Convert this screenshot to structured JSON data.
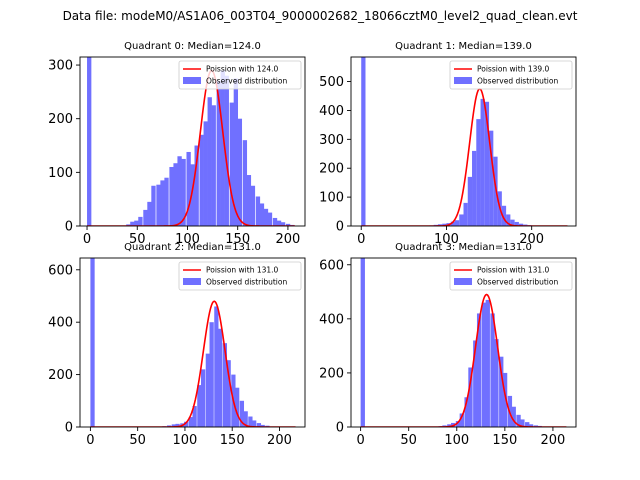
{
  "suptitle": "Data file: modeM0/AS1A06_003T04_9000002682_18066cztM0_level2_quad_clean.evt",
  "colors": {
    "hist": "#7070ff",
    "fit": "#ff0000",
    "axis": "#000000"
  },
  "chart_data": [
    {
      "type": "bar",
      "title": "Quadrant 0: Median=124.0",
      "median": 124.0,
      "xlim": [
        -7,
        217
      ],
      "ylim": [
        0,
        315
      ],
      "xticks": [
        0,
        50,
        100,
        150,
        200
      ],
      "yticks": [
        0,
        100,
        200,
        300
      ],
      "bin_width": 4.3,
      "bins": [
        [
          0,
          1500
        ],
        [
          39,
          3
        ],
        [
          43,
          8
        ],
        [
          47,
          10
        ],
        [
          51,
          17
        ],
        [
          56,
          30
        ],
        [
          60,
          45
        ],
        [
          64,
          75
        ],
        [
          69,
          77
        ],
        [
          73,
          85
        ],
        [
          77,
          90
        ],
        [
          82,
          110
        ],
        [
          86,
          117
        ],
        [
          90,
          130
        ],
        [
          94,
          125
        ],
        [
          99,
          138
        ],
        [
          103,
          115
        ],
        [
          107,
          150
        ],
        [
          112,
          170
        ],
        [
          116,
          195
        ],
        [
          120,
          240
        ],
        [
          124,
          225
        ],
        [
          129,
          270
        ],
        [
          133,
          290
        ],
        [
          137,
          280
        ],
        [
          142,
          230
        ],
        [
          146,
          275
        ],
        [
          150,
          200
        ],
        [
          155,
          160
        ],
        [
          159,
          95
        ],
        [
          163,
          75
        ],
        [
          168,
          55
        ],
        [
          172,
          42
        ],
        [
          176,
          32
        ],
        [
          180,
          25
        ],
        [
          185,
          15
        ],
        [
          189,
          10
        ],
        [
          193,
          7
        ],
        [
          198,
          4
        ],
        [
          202,
          2
        ]
      ],
      "fit": {
        "label": "Poission with 124.0",
        "mu": 124.0,
        "peak": 290
      },
      "legend": [
        "Poission with 124.0",
        "Observed distribution"
      ]
    },
    {
      "type": "bar",
      "title": "Quadrant 1: Median=139.0",
      "median": 139.0,
      "xlim": [
        -12,
        252
      ],
      "ylim": [
        0,
        585
      ],
      "xticks": [
        0,
        100,
        200
      ],
      "yticks": [
        0,
        100,
        200,
        300,
        400,
        500
      ],
      "bin_width": 5.0,
      "bins": [
        [
          0,
          1500
        ],
        [
          80,
          2
        ],
        [
          85,
          4
        ],
        [
          90,
          6
        ],
        [
          95,
          8
        ],
        [
          100,
          10
        ],
        [
          105,
          15
        ],
        [
          110,
          20
        ],
        [
          115,
          40
        ],
        [
          120,
          80
        ],
        [
          125,
          170
        ],
        [
          130,
          260
        ],
        [
          135,
          370
        ],
        [
          140,
          440
        ],
        [
          145,
          430
        ],
        [
          150,
          330
        ],
        [
          155,
          240
        ],
        [
          160,
          120
        ],
        [
          165,
          70
        ],
        [
          170,
          40
        ],
        [
          175,
          22
        ],
        [
          180,
          14
        ],
        [
          185,
          8
        ],
        [
          190,
          5
        ],
        [
          195,
          3
        ]
      ],
      "fit": {
        "label": "Poission with 139.0",
        "mu": 139.0,
        "peak": 475
      },
      "legend": [
        "Poission with 139.0",
        "Observed distribution"
      ]
    },
    {
      "type": "bar",
      "title": "Quadrant 2: Median=131.0",
      "median": 131.0,
      "xlim": [
        -11,
        227
      ],
      "ylim": [
        0,
        645
      ],
      "xticks": [
        0,
        50,
        100,
        150,
        200
      ],
      "yticks": [
        0,
        200,
        400,
        600
      ],
      "bin_width": 4.5,
      "bins": [
        [
          0,
          1500
        ],
        [
          76,
          3
        ],
        [
          81,
          6
        ],
        [
          86,
          10
        ],
        [
          90,
          12
        ],
        [
          95,
          14
        ],
        [
          99,
          20
        ],
        [
          104,
          38
        ],
        [
          108,
          80
        ],
        [
          113,
          160
        ],
        [
          117,
          220
        ],
        [
          122,
          280
        ],
        [
          126,
          400
        ],
        [
          131,
          460
        ],
        [
          135,
          375
        ],
        [
          140,
          320
        ],
        [
          144,
          255
        ],
        [
          149,
          200
        ],
        [
          153,
          150
        ],
        [
          158,
          100
        ],
        [
          162,
          60
        ],
        [
          167,
          40
        ],
        [
          171,
          25
        ],
        [
          176,
          15
        ],
        [
          180,
          8
        ],
        [
          185,
          5
        ]
      ],
      "fit": {
        "label": "Poission with 131.0",
        "mu": 131.0,
        "peak": 480
      },
      "legend": [
        "Poission with 131.0",
        "Observed distribution"
      ]
    },
    {
      "type": "bar",
      "title": "Quadrant 3: Median=131.0",
      "median": 131.0,
      "xlim": [
        -10,
        224
      ],
      "ylim": [
        0,
        625
      ],
      "xticks": [
        0,
        50,
        100,
        150,
        200
      ],
      "yticks": [
        0,
        200,
        400,
        600
      ],
      "bin_width": 4.5,
      "bins": [
        [
          0,
          1500
        ],
        [
          81,
          3
        ],
        [
          85,
          6
        ],
        [
          90,
          10
        ],
        [
          94,
          15
        ],
        [
          99,
          22
        ],
        [
          103,
          50
        ],
        [
          108,
          110
        ],
        [
          112,
          220
        ],
        [
          117,
          320
        ],
        [
          121,
          420
        ],
        [
          126,
          460
        ],
        [
          130,
          470
        ],
        [
          135,
          420
        ],
        [
          139,
          325
        ],
        [
          144,
          260
        ],
        [
          148,
          200
        ],
        [
          153,
          115
        ],
        [
          157,
          75
        ],
        [
          162,
          45
        ],
        [
          166,
          28
        ],
        [
          171,
          18
        ],
        [
          175,
          10
        ],
        [
          180,
          6
        ],
        [
          184,
          4
        ]
      ],
      "fit": {
        "label": "Poission with 131.0",
        "mu": 131.0,
        "peak": 490
      },
      "legend": [
        "Poission with 131.0",
        "Observed distribution"
      ]
    }
  ]
}
